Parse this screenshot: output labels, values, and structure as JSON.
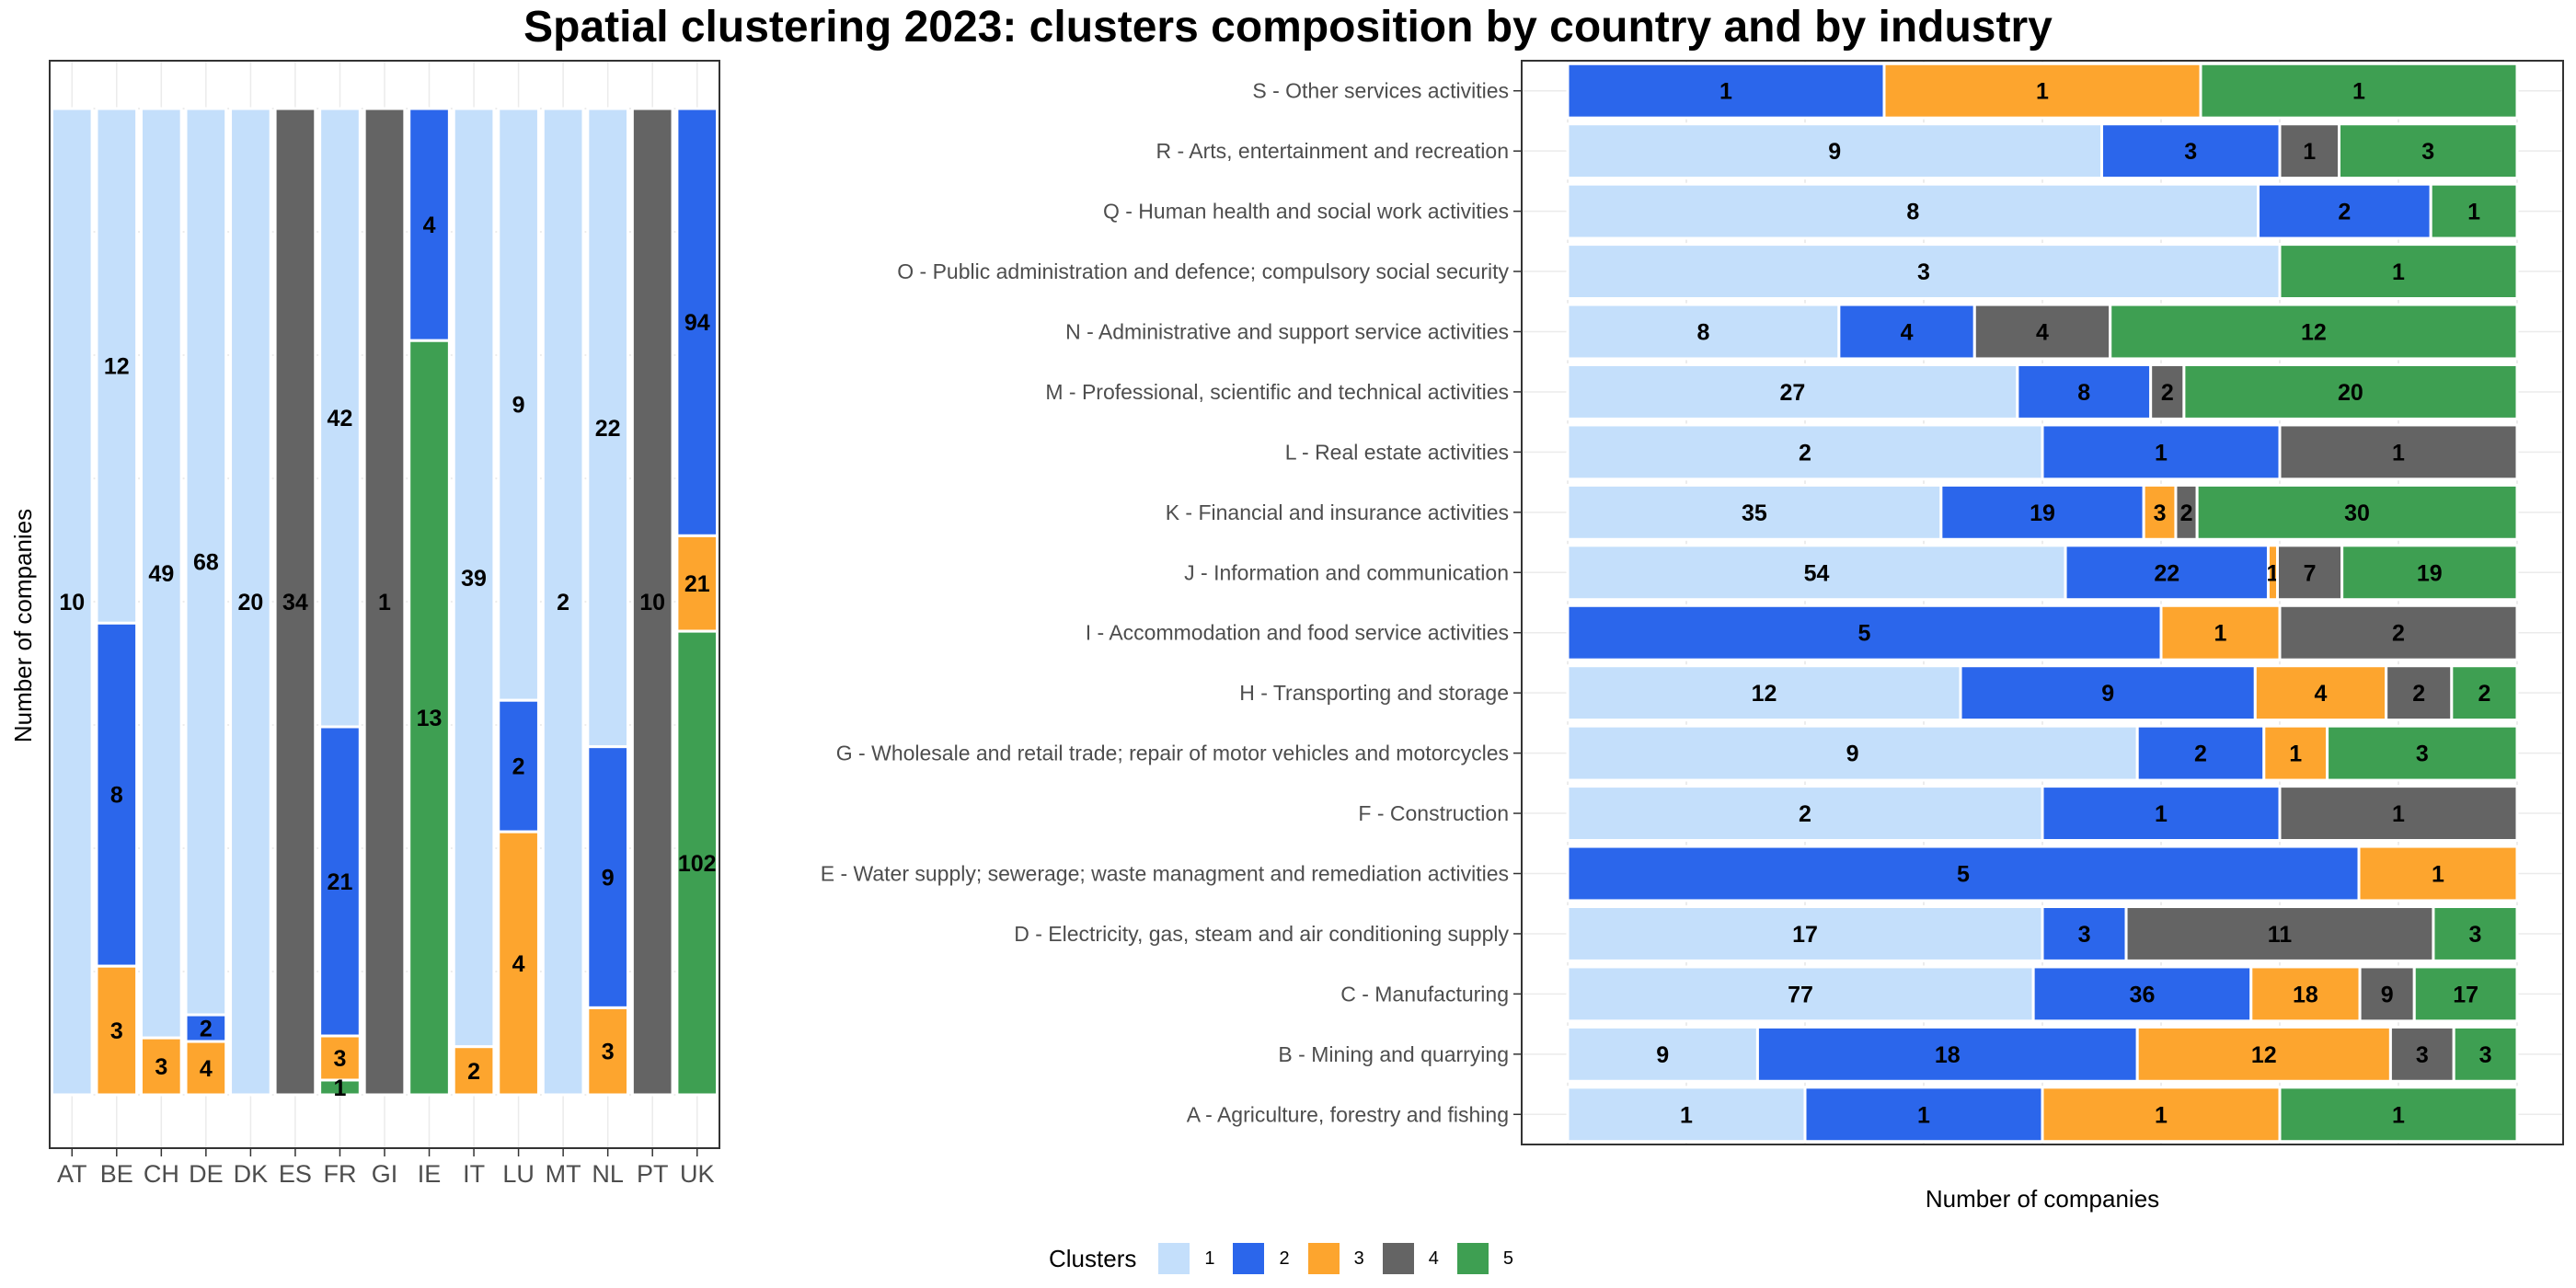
{
  "title": "Spatial clustering 2023: clusters composition by country and by industry",
  "colors": {
    "1": "#c4dffb",
    "2": "#2b66eb",
    "3": "#fda52e",
    "4": "#646464",
    "5": "#3e9f52"
  },
  "legend": {
    "title": "Clusters",
    "items": [
      "1",
      "2",
      "3",
      "4",
      "5"
    ]
  },
  "chart_data": [
    {
      "type": "bar",
      "orientation": "vertical",
      "stacked": "proportional",
      "title": "",
      "xlabel": "",
      "ylabel": "Number of companies",
      "categories": [
        "AT",
        "BE",
        "CH",
        "DE",
        "DK",
        "ES",
        "FR",
        "GI",
        "IE",
        "IT",
        "LU",
        "MT",
        "NL",
        "PT",
        "UK"
      ],
      "series": [
        {
          "name": "1",
          "values": [
            10,
            12,
            49,
            68,
            20,
            null,
            42,
            null,
            null,
            39,
            9,
            2,
            22,
            null,
            null
          ]
        },
        {
          "name": "2",
          "values": [
            null,
            8,
            null,
            2,
            null,
            null,
            21,
            null,
            4,
            null,
            2,
            null,
            9,
            null,
            94
          ]
        },
        {
          "name": "3",
          "values": [
            null,
            3,
            3,
            4,
            null,
            null,
            3,
            null,
            null,
            2,
            4,
            null,
            3,
            null,
            21
          ]
        },
        {
          "name": "4",
          "values": [
            null,
            null,
            null,
            null,
            null,
            34,
            null,
            1,
            null,
            null,
            null,
            null,
            null,
            10,
            null
          ]
        },
        {
          "name": "5",
          "values": [
            null,
            null,
            null,
            null,
            null,
            null,
            1,
            null,
            13,
            null,
            null,
            null,
            null,
            null,
            102
          ]
        }
      ]
    },
    {
      "type": "bar",
      "orientation": "horizontal",
      "stacked": "proportional",
      "title": "",
      "xlabel": "Number of companies",
      "ylabel": "",
      "categories": [
        "A - Agriculture, forestry and fishing",
        "B - Mining and quarrying",
        "C - Manufacturing",
        "D - Electricity, gas, steam and air conditioning supply",
        "E - Water supply; sewerage; waste managment and remediation activities",
        "F - Construction",
        "G - Wholesale and retail trade; repair of motor vehicles and motorcycles",
        "H - Transporting and storage",
        "I - Accommodation and food service activities",
        "J - Information and communication",
        "K - Financial and insurance activities",
        "L - Real estate activities",
        "M - Professional, scientific and technical activities",
        "N - Administrative and support service activities",
        "O - Public administration and defence; compulsory social security",
        "Q - Human health and social work activities",
        "R - Arts, entertainment and recreation",
        "S - Other services activities"
      ],
      "series": [
        {
          "name": "1",
          "values": [
            1,
            9,
            77,
            17,
            null,
            2,
            9,
            12,
            null,
            54,
            35,
            2,
            27,
            8,
            3,
            8,
            9,
            null
          ]
        },
        {
          "name": "2",
          "values": [
            1,
            18,
            36,
            3,
            5,
            1,
            2,
            9,
            5,
            22,
            19,
            1,
            8,
            4,
            null,
            2,
            3,
            1
          ]
        },
        {
          "name": "3",
          "values": [
            1,
            12,
            18,
            null,
            1,
            null,
            1,
            4,
            1,
            1,
            3,
            null,
            null,
            null,
            null,
            null,
            null,
            1
          ]
        },
        {
          "name": "4",
          "values": [
            null,
            3,
            9,
            11,
            null,
            1,
            null,
            2,
            2,
            7,
            2,
            1,
            2,
            4,
            null,
            null,
            1,
            null
          ]
        },
        {
          "name": "5",
          "values": [
            1,
            3,
            17,
            3,
            null,
            null,
            3,
            2,
            null,
            19,
            30,
            null,
            20,
            12,
            1,
            1,
            3,
            1
          ]
        }
      ]
    }
  ]
}
